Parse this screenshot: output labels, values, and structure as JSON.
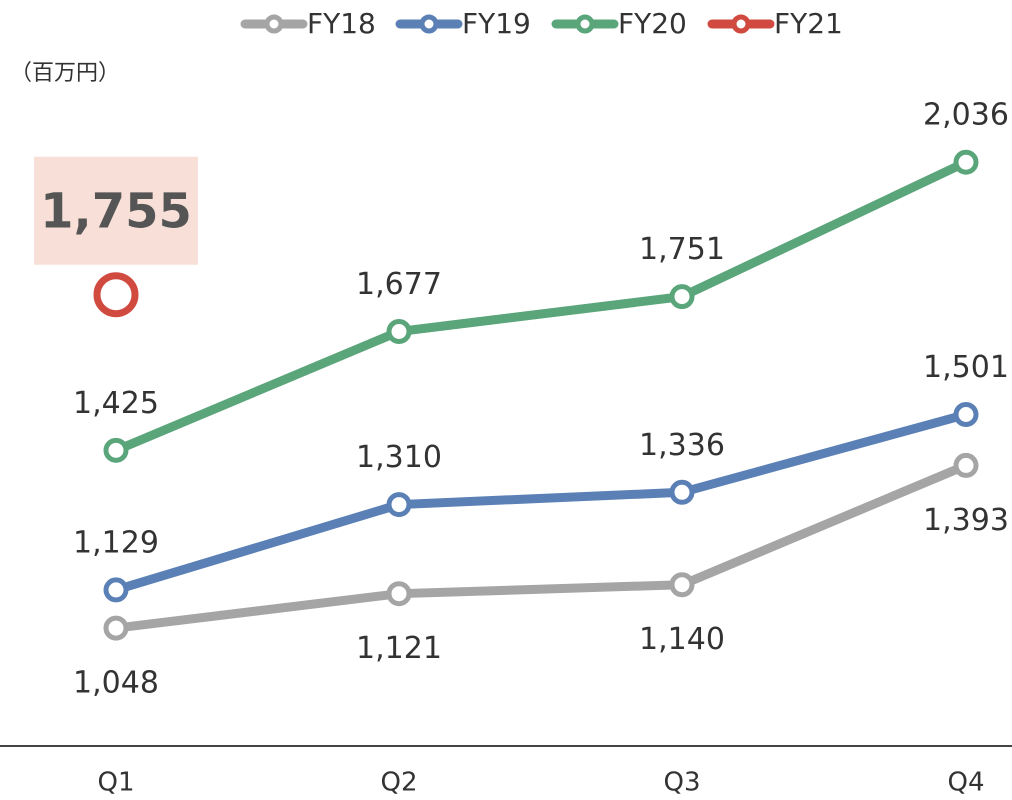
{
  "chart_data": {
    "type": "line",
    "y_label": "（百万円）",
    "categories": [
      "Q1",
      "Q2",
      "Q3",
      "Q4"
    ],
    "ylim": [
      798,
      2380
    ],
    "series": [
      {
        "name": "FY18",
        "color": "#a5a5a5",
        "values": [
          1048,
          1121,
          1140,
          1393
        ],
        "value_labels": [
          "1,048",
          "1,121",
          "1,140",
          "1,393"
        ]
      },
      {
        "name": "FY19",
        "color": "#5b80b6",
        "values": [
          1129,
          1310,
          1336,
          1501
        ],
        "value_labels": [
          "1,129",
          "1,310",
          "1,336",
          "1,501"
        ]
      },
      {
        "name": "FY20",
        "color": "#5ba57b",
        "values": [
          1425,
          1677,
          1751,
          2036
        ],
        "value_labels": [
          "1,425",
          "1,677",
          "1,751",
          "2,036"
        ]
      },
      {
        "name": "FY21",
        "color": "#d04a40",
        "values": [
          1755,
          null,
          null,
          null
        ],
        "value_labels": [
          "1,755",
          null,
          null,
          null
        ]
      }
    ]
  }
}
